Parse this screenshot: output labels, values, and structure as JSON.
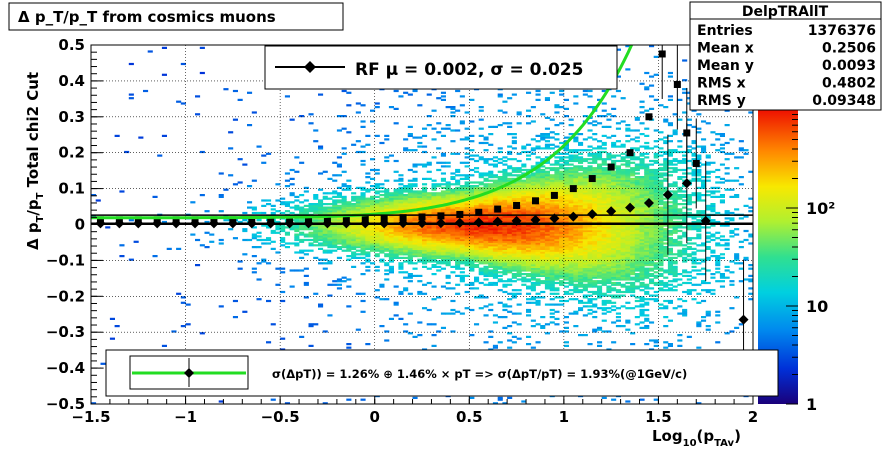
{
  "window": {
    "title": "Δ p_T/p_T from cosmics muons"
  },
  "stats_box": {
    "name": "DelpTRAllT",
    "rows": [
      {
        "label": "Entries",
        "value": "1376376"
      },
      {
        "label": "Mean x",
        "value": "0.2506"
      },
      {
        "label": "Mean y",
        "value": "0.0093"
      },
      {
        "label": "RMS x",
        "value": "0.4802"
      },
      {
        "label": "RMS y",
        "value": "0.09348"
      }
    ]
  },
  "legend_top": {
    "text": "RF μ =  0.002, σ =   0.025"
  },
  "legend_bottom": {
    "text": "σ(ΔpT)) =  1.26% ⊕  1.46% × pT => σ(ΔpT/pT) =  1.93%(@1GeV/c)"
  },
  "colors": {
    "fit_curve": "#22dd22",
    "markers": "#000000",
    "frame": "#000000",
    "grid": "#000000"
  },
  "chart_data": {
    "type": "heatmap",
    "title": "Δ p_T/p_T from cosmics muons",
    "xlabel": "Log10(pTAv)",
    "ylabel": "Δ pT/pT  Total chi2 Cut",
    "xlim": [
      -1.5,
      2.0
    ],
    "ylim": [
      -0.5,
      0.5
    ],
    "xticks": [
      "−1.5",
      "−1",
      "−0.5",
      "0",
      "0.5",
      "1",
      "1.5",
      "2"
    ],
    "yticks": [
      "−0.5",
      "−0.4",
      "−0.3",
      "−0.2",
      "−0.1",
      "0",
      "0.1",
      "0.2",
      "0.3",
      "0.4",
      "0.5"
    ],
    "grid": true,
    "colorbar": {
      "scale": "log",
      "range": [
        1,
        1000
      ],
      "ticks": [
        "1",
        "10",
        "10²"
      ]
    },
    "density_model": {
      "center_log10": 0.6,
      "center_width": 0.45,
      "core_sigma": [
        {
          "x": -1.5,
          "sigma": 0.05
        },
        {
          "x": 0.0,
          "sigma": 0.045
        },
        {
          "x": 0.5,
          "sigma": 0.05
        },
        {
          "x": 1.0,
          "sigma": 0.08
        },
        {
          "x": 1.5,
          "sigma": 0.13
        },
        {
          "x": 2.0,
          "sigma": 0.18
        }
      ]
    },
    "series": [
      {
        "name": "mean",
        "marker": "diamond",
        "points": [
          {
            "x": -1.45,
            "y": 0.003
          },
          {
            "x": -1.35,
            "y": 0.003
          },
          {
            "x": -1.25,
            "y": 0.003
          },
          {
            "x": -1.15,
            "y": 0.003
          },
          {
            "x": -1.05,
            "y": 0.003
          },
          {
            "x": -0.95,
            "y": 0.003
          },
          {
            "x": -0.85,
            "y": 0.003
          },
          {
            "x": -0.75,
            "y": 0.003
          },
          {
            "x": -0.65,
            "y": 0.003
          },
          {
            "x": -0.55,
            "y": 0.003
          },
          {
            "x": -0.45,
            "y": 0.003
          },
          {
            "x": -0.35,
            "y": 0.003
          },
          {
            "x": -0.25,
            "y": 0.003
          },
          {
            "x": -0.15,
            "y": 0.003
          },
          {
            "x": -0.05,
            "y": 0.003
          },
          {
            "x": 0.05,
            "y": 0.003
          },
          {
            "x": 0.15,
            "y": 0.004
          },
          {
            "x": 0.25,
            "y": 0.004
          },
          {
            "x": 0.35,
            "y": 0.004
          },
          {
            "x": 0.45,
            "y": 0.005
          },
          {
            "x": 0.55,
            "y": 0.006
          },
          {
            "x": 0.65,
            "y": 0.008
          },
          {
            "x": 0.75,
            "y": 0.01
          },
          {
            "x": 0.85,
            "y": 0.013
          },
          {
            "x": 0.95,
            "y": 0.017
          },
          {
            "x": 1.05,
            "y": 0.022
          },
          {
            "x": 1.15,
            "y": 0.029
          },
          {
            "x": 1.25,
            "y": 0.037
          },
          {
            "x": 1.35,
            "y": 0.047
          },
          {
            "x": 1.45,
            "y": 0.06
          },
          {
            "x": 1.55,
            "y": 0.083
          },
          {
            "x": 1.65,
            "y": 0.115
          },
          {
            "x": 1.75,
            "y": 0.01
          },
          {
            "x": 1.95,
            "y": -0.265
          }
        ]
      },
      {
        "name": "sigma",
        "marker": "square",
        "points": [
          {
            "x": -1.45,
            "y": 0.013
          },
          {
            "x": -1.35,
            "y": 0.013
          },
          {
            "x": -1.25,
            "y": 0.013
          },
          {
            "x": -1.15,
            "y": 0.013
          },
          {
            "x": -1.05,
            "y": 0.013
          },
          {
            "x": -0.95,
            "y": 0.013
          },
          {
            "x": -0.85,
            "y": 0.013
          },
          {
            "x": -0.75,
            "y": 0.013
          },
          {
            "x": -0.65,
            "y": 0.013
          },
          {
            "x": -0.55,
            "y": 0.013
          },
          {
            "x": -0.45,
            "y": 0.014
          },
          {
            "x": -0.35,
            "y": 0.014
          },
          {
            "x": -0.25,
            "y": 0.014
          },
          {
            "x": -0.15,
            "y": 0.015
          },
          {
            "x": -0.05,
            "y": 0.016
          },
          {
            "x": 0.05,
            "y": 0.017
          },
          {
            "x": 0.15,
            "y": 0.019
          },
          {
            "x": 0.25,
            "y": 0.021
          },
          {
            "x": 0.35,
            "y": 0.024
          },
          {
            "x": 0.45,
            "y": 0.028
          },
          {
            "x": 0.55,
            "y": 0.034
          },
          {
            "x": 0.65,
            "y": 0.043
          },
          {
            "x": 0.75,
            "y": 0.053
          },
          {
            "x": 0.85,
            "y": 0.066
          },
          {
            "x": 0.95,
            "y": 0.081
          },
          {
            "x": 1.05,
            "y": 0.1
          },
          {
            "x": 1.15,
            "y": 0.128
          },
          {
            "x": 1.25,
            "y": 0.16
          },
          {
            "x": 1.35,
            "y": 0.2
          },
          {
            "x": 1.45,
            "y": 0.3
          },
          {
            "x": 1.52,
            "y": 0.475
          },
          {
            "x": 1.6,
            "y": 0.39
          },
          {
            "x": 1.65,
            "y": 0.255
          },
          {
            "x": 1.7,
            "y": 0.17
          }
        ]
      },
      {
        "name": "fit",
        "style": "line",
        "function": "sqrt(0.0126^2 + (0.0146*10^x)^2) * 1.5",
        "xrange": [
          -1.5,
          1.4
        ]
      },
      {
        "name": "mean_line",
        "style": "line",
        "y": 0.002
      }
    ]
  }
}
